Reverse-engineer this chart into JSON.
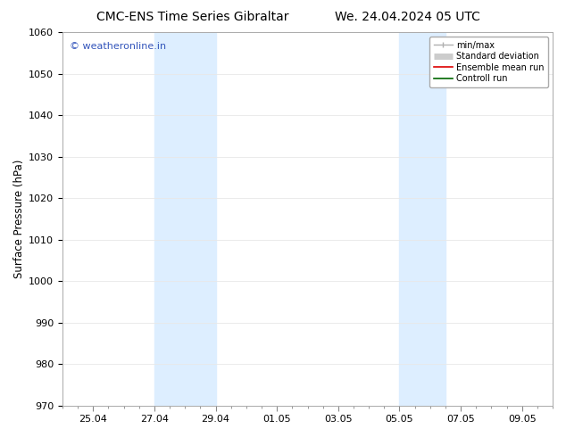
{
  "title": "CMC-ENS Time Series Gibraltar",
  "title2": "We. 24.04.2024 05 UTC",
  "ylabel": "Surface Pressure (hPa)",
  "ylim": [
    970,
    1060
  ],
  "yticks": [
    970,
    980,
    990,
    1000,
    1010,
    1020,
    1030,
    1040,
    1050,
    1060
  ],
  "xtick_labels": [
    "25.04",
    "27.04",
    "29.04",
    "01.05",
    "03.05",
    "05.05",
    "07.05",
    "09.05"
  ],
  "xtick_positions": [
    1,
    3,
    5,
    7,
    9,
    11,
    13,
    15
  ],
  "shaded_bands": [
    {
      "x_start": 3,
      "x_end": 5,
      "color": "#ddeeff"
    },
    {
      "x_start": 11,
      "x_end": 12.5,
      "color": "#ddeeff"
    }
  ],
  "xlim": [
    0,
    16
  ],
  "background_color": "#ffffff",
  "plot_bg_color": "#ffffff",
  "watermark_text": "© weatheronline.in",
  "watermark_color": "#3355bb",
  "legend_entries": [
    {
      "label": "min/max",
      "color": "#b0b0b0",
      "lw": 1.0
    },
    {
      "label": "Standard deviation",
      "color": "#cccccc",
      "lw": 5
    },
    {
      "label": "Ensemble mean run",
      "color": "#dd0000",
      "lw": 1.2
    },
    {
      "label": "Controll run",
      "color": "#006600",
      "lw": 1.2
    }
  ],
  "grid_color": "#e8e8e8",
  "tick_label_fontsize": 8,
  "axis_label_fontsize": 8.5,
  "title_fontsize": 10,
  "watermark_fontsize": 8
}
